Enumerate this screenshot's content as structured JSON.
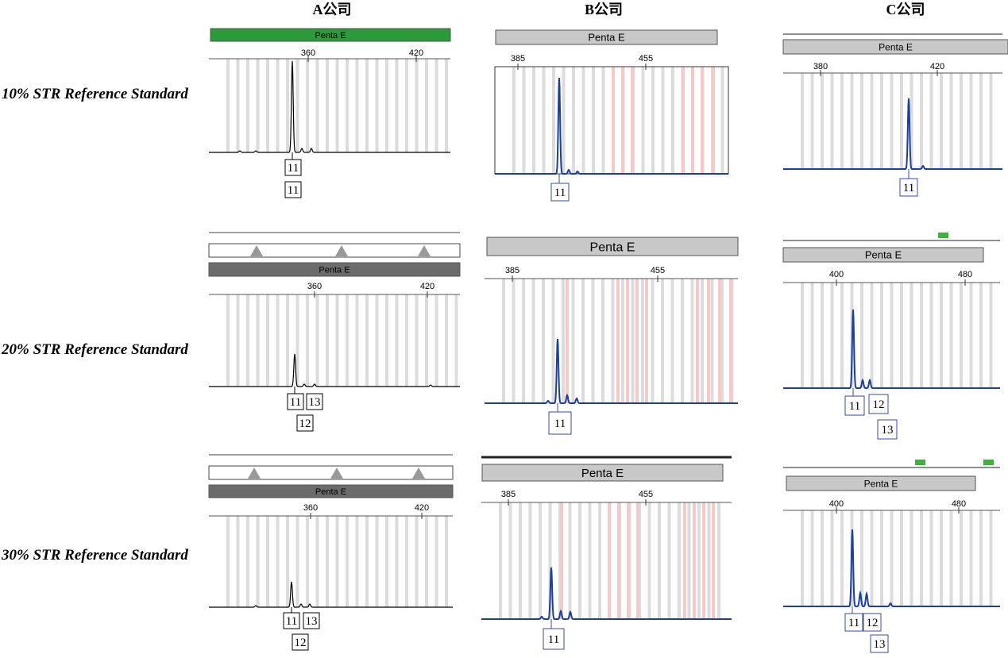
{
  "columns": [
    "A公司",
    "B公司",
    "C公司"
  ],
  "rows": [
    "10% STR Reference Standard",
    "20% STR Reference Standard",
    "30% STR Reference Standard"
  ],
  "panels": [
    {
      "locus": "Penta E",
      "ticks": [
        360,
        420
      ],
      "alleles": [
        11,
        11
      ]
    },
    {
      "locus": "Penta E",
      "ticks": [
        385,
        455
      ],
      "alleles": [
        11
      ]
    },
    {
      "locus": "Penta E",
      "ticks": [
        380,
        420
      ],
      "alleles": [
        11
      ]
    },
    {
      "locus": "Penta E",
      "ticks": [
        360,
        420
      ],
      "alleles": [
        11,
        13,
        12
      ]
    },
    {
      "locus": "Penta E",
      "ticks": [
        385,
        455
      ],
      "alleles": [
        11
      ]
    },
    {
      "locus": "Penta E",
      "ticks": [
        400,
        480
      ],
      "alleles": [
        11,
        12,
        13
      ]
    },
    {
      "locus": "Penta E",
      "ticks": [
        360,
        420
      ],
      "alleles": [
        11,
        13,
        12
      ]
    },
    {
      "locus": "Penta E",
      "ticks": [
        385,
        455
      ],
      "alleles": [
        11
      ]
    },
    {
      "locus": "Penta E",
      "ticks": [
        400,
        480
      ],
      "alleles": [
        11,
        12,
        13
      ]
    }
  ]
}
